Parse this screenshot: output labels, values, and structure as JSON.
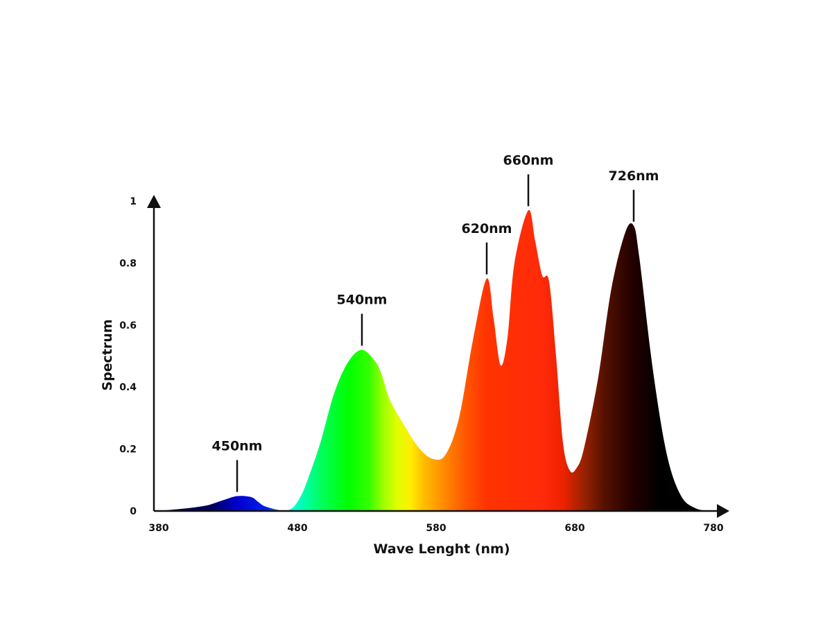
{
  "chart_data": {
    "type": "area",
    "title": "",
    "xlabel": "Wave Lenght (nm)",
    "ylabel": "Spectrum",
    "xlim": [
      380,
      780
    ],
    "ylim": [
      0,
      1
    ],
    "x_ticks": [
      "380",
      "480",
      "580",
      "680",
      "780"
    ],
    "y_ticks": [
      "0",
      "0.2",
      "0.4",
      "0.6",
      "0.8",
      "1"
    ],
    "grid": false,
    "legend": "none",
    "series": [
      {
        "x": [
          380,
          390,
          400,
          410,
          420,
          430,
          440,
          450,
          455,
          460,
          470,
          475,
          480,
          485,
          490,
          500,
          510,
          520,
          530,
          540,
          545,
          550,
          560,
          570,
          580,
          590,
          600,
          610,
          620,
          625,
          630,
          635,
          640,
          650,
          655,
          660,
          665,
          670,
          675,
          680,
          685,
          690,
          700,
          710,
          720,
          726,
          730,
          740,
          750,
          760,
          770,
          780
        ],
        "y": [
          0.0,
          0.003,
          0.007,
          0.012,
          0.02,
          0.035,
          0.048,
          0.045,
          0.03,
          0.015,
          0.003,
          0.001,
          0.01,
          0.04,
          0.09,
          0.22,
          0.38,
          0.48,
          0.52,
          0.48,
          0.43,
          0.36,
          0.28,
          0.21,
          0.17,
          0.18,
          0.3,
          0.55,
          0.75,
          0.62,
          0.47,
          0.56,
          0.8,
          0.97,
          0.87,
          0.76,
          0.74,
          0.5,
          0.22,
          0.13,
          0.14,
          0.2,
          0.42,
          0.72,
          0.9,
          0.92,
          0.82,
          0.45,
          0.18,
          0.05,
          0.01,
          0.0
        ]
      }
    ],
    "annotations": [
      {
        "label": "450nm",
        "x": 440,
        "y": 0.048
      },
      {
        "label": "540nm",
        "x": 530,
        "y": 0.52
      },
      {
        "label": "620nm",
        "x": 620,
        "y": 0.75
      },
      {
        "label": "660nm",
        "x": 650,
        "y": 0.97
      },
      {
        "label": "726nm",
        "x": 726,
        "y": 0.92
      }
    ],
    "gradient_stops": [
      {
        "x": 420,
        "color": "#000055"
      },
      {
        "x": 440,
        "color": "#0000cc"
      },
      {
        "x": 462,
        "color": "#0022ee"
      },
      {
        "x": 480,
        "color": "#00ffe0"
      },
      {
        "x": 500,
        "color": "#00ff60"
      },
      {
        "x": 520,
        "color": "#00ff00"
      },
      {
        "x": 535,
        "color": "#33ff00"
      },
      {
        "x": 545,
        "color": "#99ff00"
      },
      {
        "x": 555,
        "color": "#ddff00"
      },
      {
        "x": 565,
        "color": "#ffee00"
      },
      {
        "x": 575,
        "color": "#ffbb00"
      },
      {
        "x": 590,
        "color": "#ff8800"
      },
      {
        "x": 605,
        "color": "#ff5500"
      },
      {
        "x": 620,
        "color": "#ff3300"
      },
      {
        "x": 660,
        "color": "#ff2a0a"
      },
      {
        "x": 675,
        "color": "#ee2200"
      },
      {
        "x": 690,
        "color": "#992200"
      },
      {
        "x": 705,
        "color": "#551100"
      },
      {
        "x": 725,
        "color": "#220000"
      },
      {
        "x": 745,
        "color": "#000000"
      },
      {
        "x": 780,
        "color": "#000000"
      }
    ]
  }
}
